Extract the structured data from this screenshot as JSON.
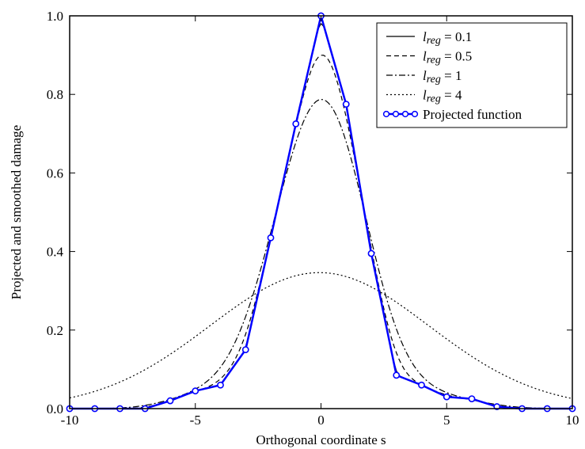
{
  "chart_data": {
    "type": "line",
    "xlabel": "Orthogonal coordinate s",
    "ylabel": "Projected and smoothed damage",
    "xlim": [
      -10,
      10
    ],
    "ylim": [
      0,
      1.0
    ],
    "x_ticks": [
      "-10",
      "-5",
      "0",
      "5",
      "10"
    ],
    "y_ticks": [
      "0.0",
      "0.2",
      "0.4",
      "0.6",
      "0.8",
      "1.0"
    ],
    "x_tick_values": [
      -10,
      -5,
      0,
      5,
      10
    ],
    "y_tick_values": [
      0,
      0.2,
      0.4,
      0.6,
      0.8,
      1.0
    ],
    "grid": false,
    "legend_position": "top-right",
    "legend": [
      {
        "symbol": "l",
        "subscript": "reg",
        "value": " = 0.1",
        "style": "solid"
      },
      {
        "symbol": "l",
        "subscript": "reg",
        "value": " = 0.5",
        "style": "dashed"
      },
      {
        "symbol": "l",
        "subscript": "reg",
        "value": " = 1",
        "style": "dashdot"
      },
      {
        "symbol": "l",
        "subscript": "reg",
        "value": " = 4",
        "style": "dotted"
      },
      {
        "label": "Projected function",
        "style": "marker-line"
      }
    ],
    "projected_function": {
      "color": "#0000ff",
      "x": [
        -10,
        -9,
        -8,
        -7,
        -6,
        -5,
        -4,
        -3,
        -2,
        -1,
        0,
        1,
        2,
        3,
        4,
        5,
        6,
        7,
        8,
        9,
        10
      ],
      "y": [
        0.0,
        0.0,
        0.0,
        0.0,
        0.02,
        0.045,
        0.06,
        0.15,
        0.435,
        0.725,
        1.0,
        0.775,
        0.395,
        0.085,
        0.06,
        0.03,
        0.025,
        0.005,
        0.0,
        0.0,
        0.0
      ]
    },
    "smoothed_curves": [
      {
        "lreg": 0.1,
        "style": "solid",
        "color": "#000000"
      },
      {
        "lreg": 0.5,
        "style": "dashed",
        "color": "#000000"
      },
      {
        "lreg": 1,
        "style": "dashdot",
        "color": "#000000"
      },
      {
        "lreg": 4,
        "style": "dotted",
        "color": "#000000"
      }
    ]
  }
}
